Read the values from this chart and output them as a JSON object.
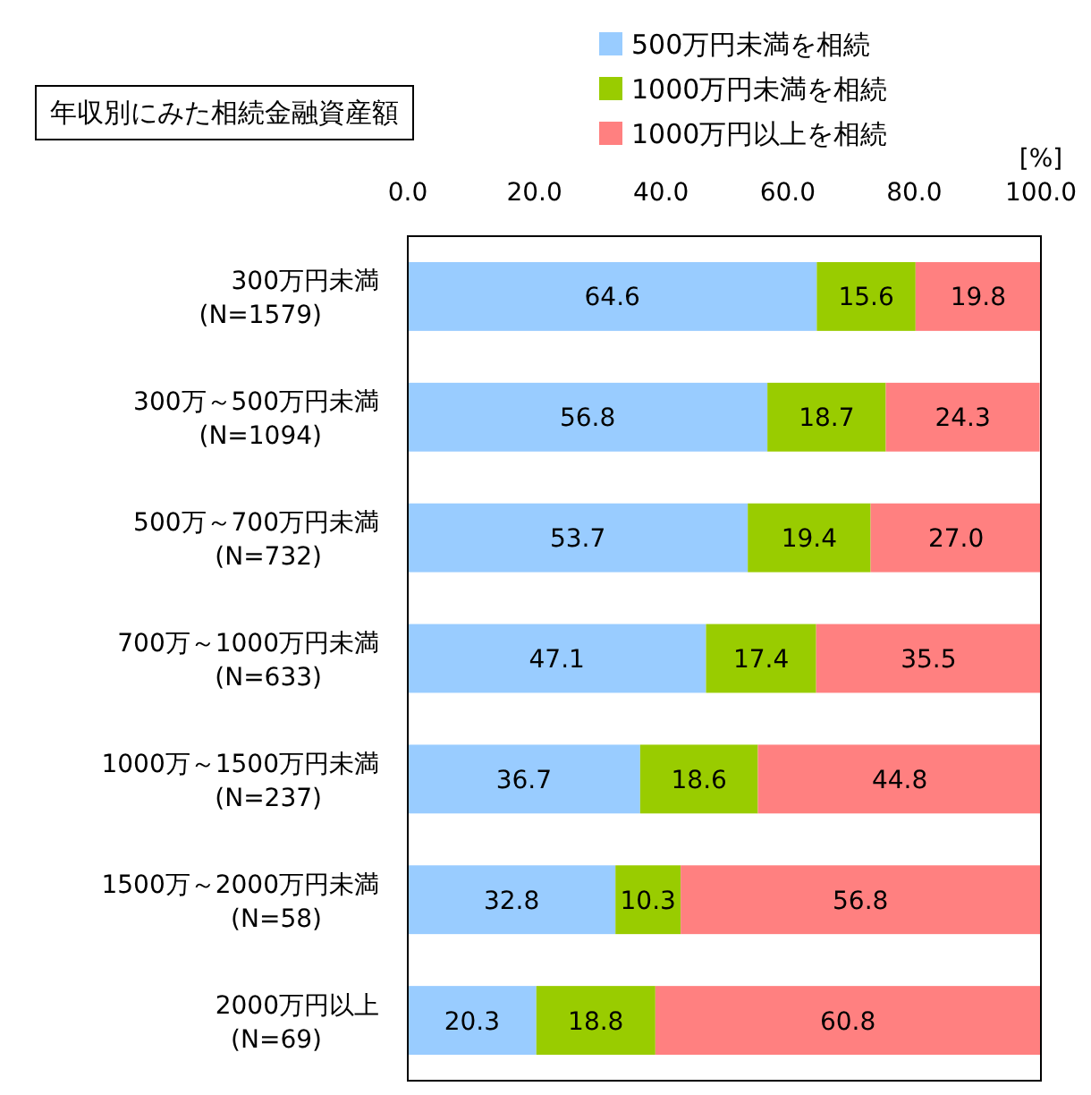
{
  "chart_data": {
    "type": "bar",
    "orientation": "horizontal",
    "stacked": true,
    "title": "年収別にみた相続金融資産額",
    "xlabel": "[%]",
    "categories": [
      "300万円未満\n(N=1579)",
      "300万～500万円未満\n(N=1094)",
      "500万～700万円未満\n(N=732)",
      "700万～1000万円未満\n(N=633)",
      "1000万～1500万円未満\n(N=237)",
      "1500万～2000万円未満\n(N=58)",
      "2000万円以上\n(N=69)"
    ],
    "series": [
      {
        "name": "500万円未満を相続",
        "color": "#99ccff",
        "values": [
          64.6,
          56.8,
          53.7,
          47.1,
          36.7,
          32.8,
          20.3
        ],
        "value_labels": [
          "64.6",
          "56.8",
          "53.7",
          "47.1",
          "36.7",
          "32.8",
          "20.3"
        ]
      },
      {
        "name": "1000万円未満を相続",
        "color": "#99cc00",
        "values": [
          15.6,
          18.7,
          19.4,
          17.4,
          18.6,
          10.3,
          18.8
        ],
        "value_labels": [
          "15.6",
          "18.7",
          "19.4",
          "17.4",
          "18.6",
          "10.3",
          "18.8"
        ]
      },
      {
        "name": "1000万円以上を相続",
        "color": "#ff8080",
        "values": [
          19.8,
          24.3,
          27.0,
          35.5,
          44.8,
          56.8,
          60.8
        ],
        "value_labels": [
          "19.8",
          "24.3",
          "27.0",
          "35.5",
          "44.8",
          "56.8",
          "60.8"
        ]
      }
    ],
    "xlim": [
      0,
      100
    ],
    "xticks": [
      {
        "value": 0,
        "label": "0.0"
      },
      {
        "value": 20,
        "label": "20.0"
      },
      {
        "value": 40,
        "label": "40.0"
      },
      {
        "value": 60,
        "label": "60.0"
      },
      {
        "value": 80,
        "label": "80.0"
      },
      {
        "value": 100,
        "label": "100.0"
      }
    ],
    "legend": "top right",
    "grid": false
  }
}
